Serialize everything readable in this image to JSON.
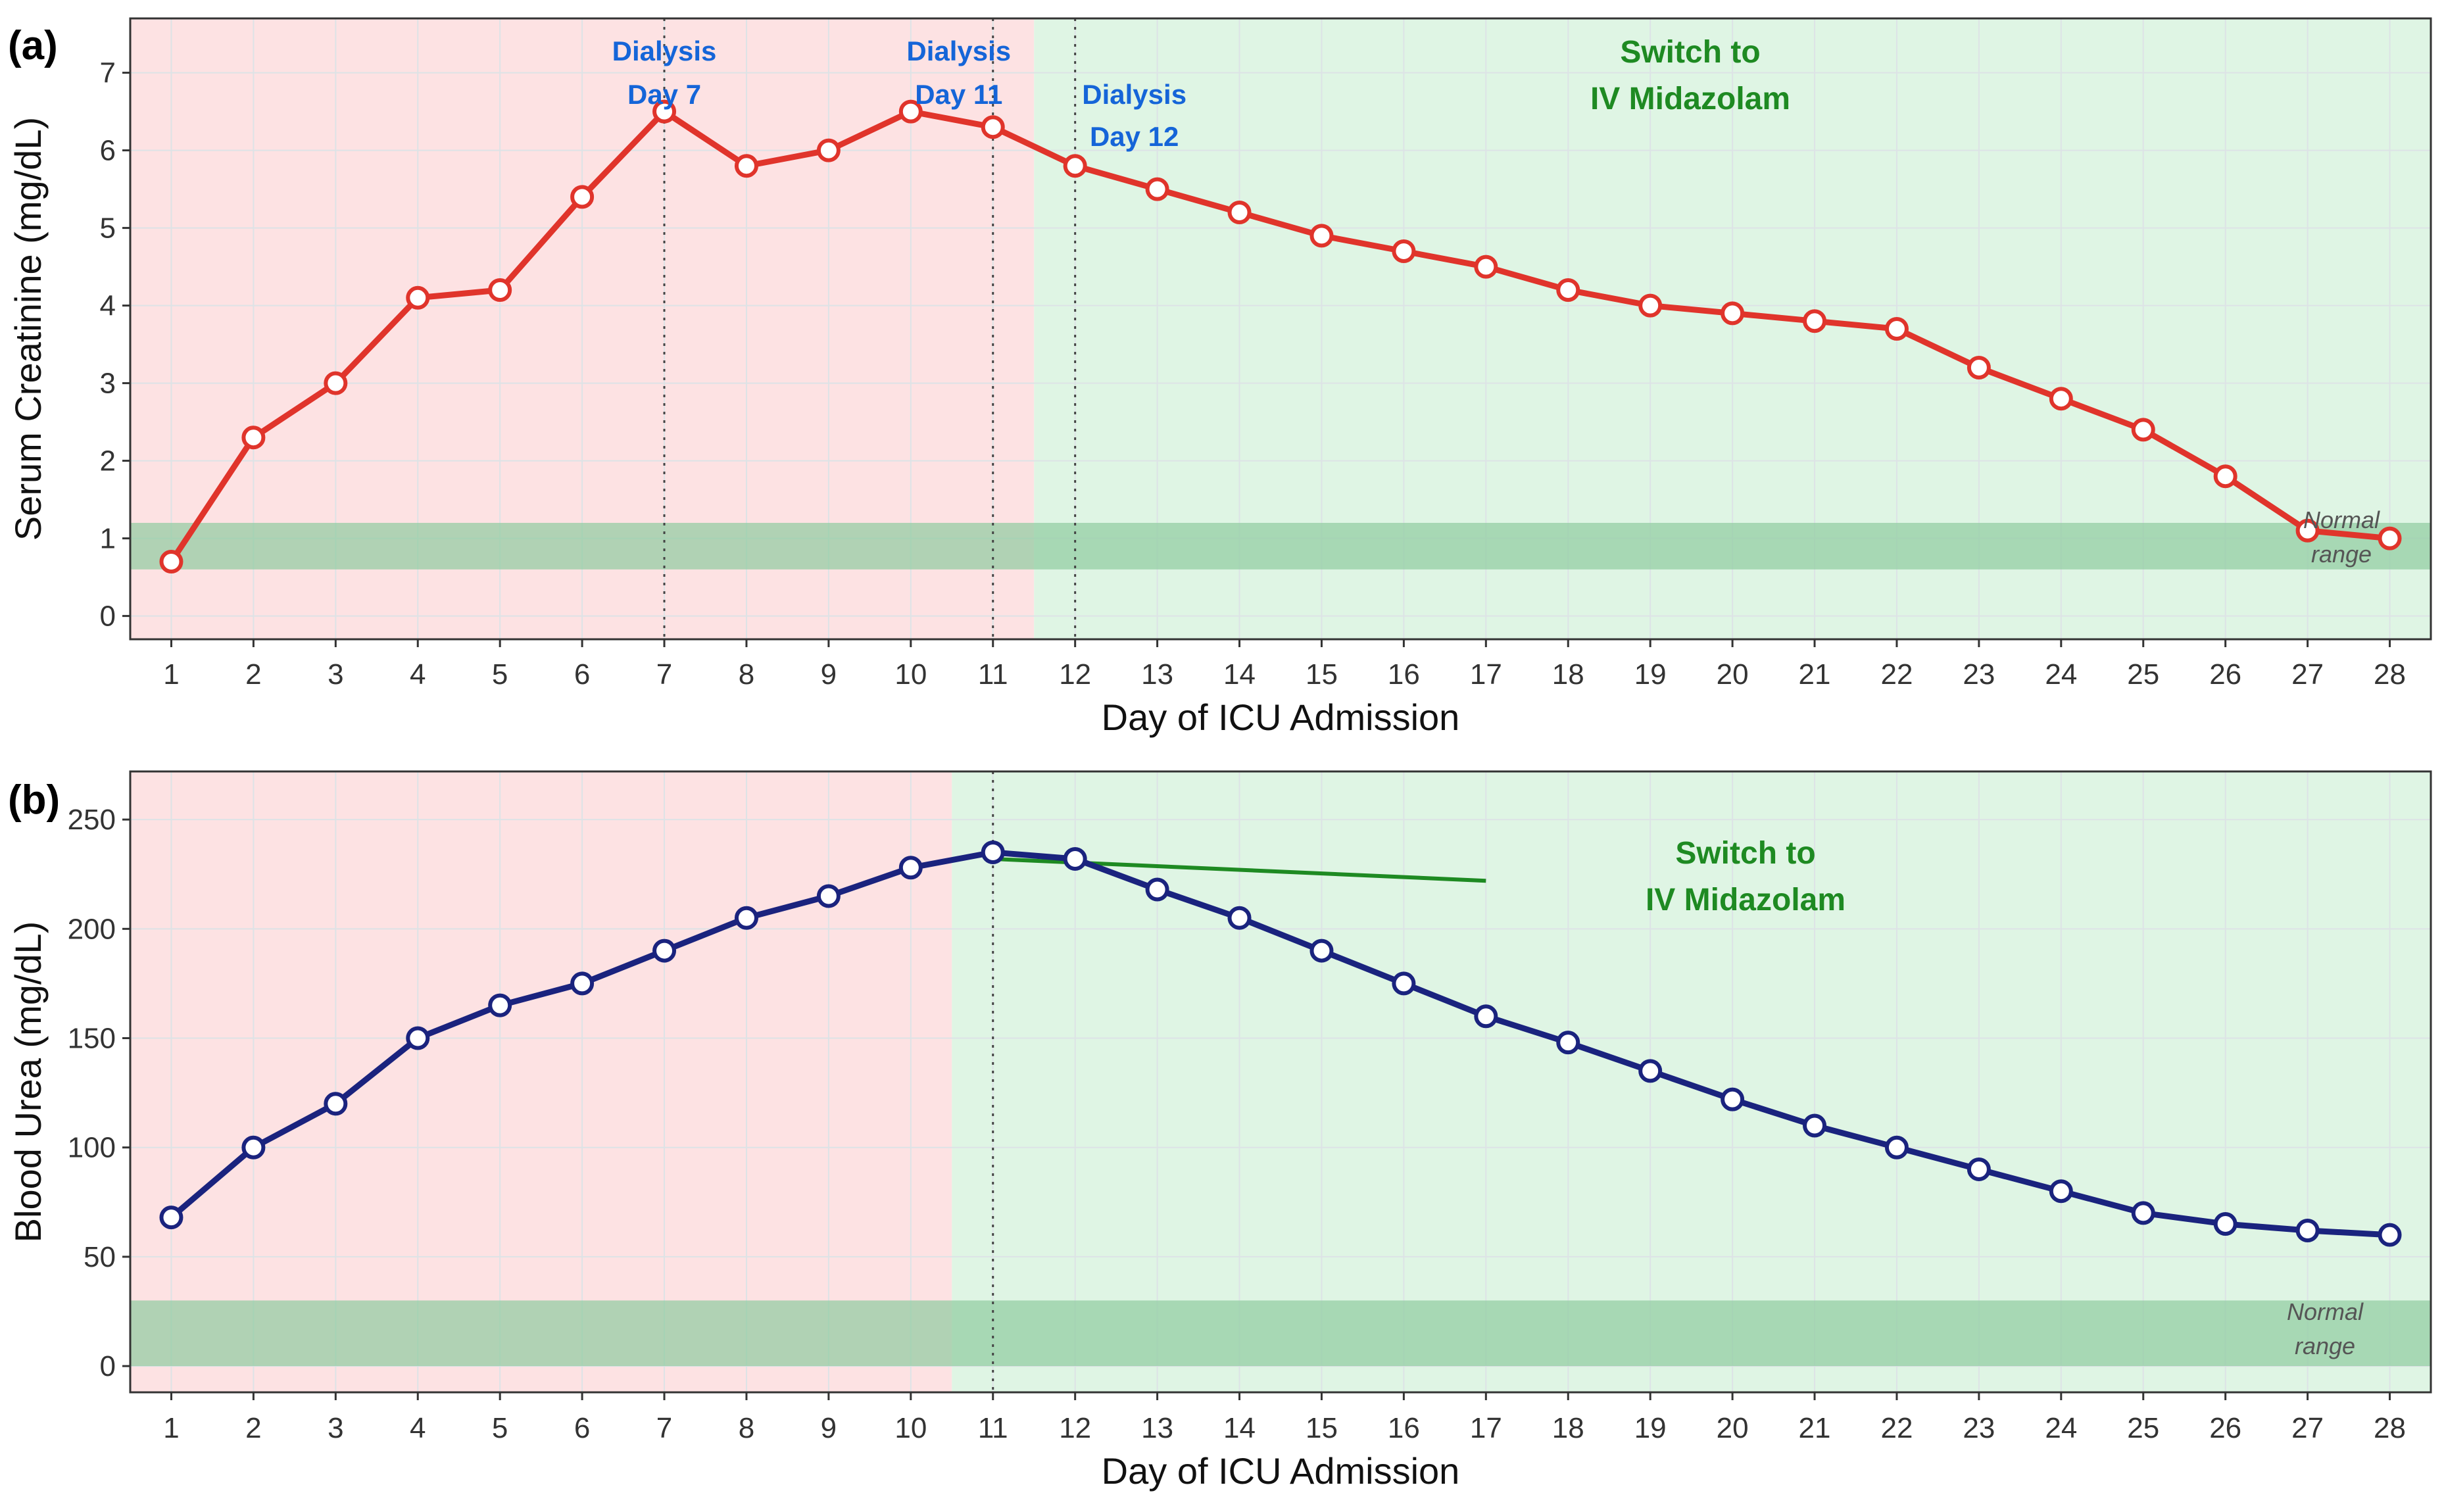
{
  "colors": {
    "pre_bg": "#fde2e3",
    "post_bg": "#dff5e4",
    "normal_band": "#8fcc9f",
    "grid": "#dde3e6",
    "creatinine_line": "#e0342b",
    "urea_line": "#1a237e",
    "dialysis_text": "#1565d8",
    "switch_text": "#1e8a22",
    "trend_line": "#1e8a22"
  },
  "chart_data": [
    {
      "type": "line",
      "panel_label": "(a)",
      "xlabel": "Day of ICU Admission",
      "ylabel": "Serum Creatinine (mg/dL)",
      "x": [
        1,
        2,
        3,
        4,
        5,
        6,
        7,
        8,
        9,
        10,
        11,
        12,
        13,
        14,
        15,
        16,
        17,
        18,
        19,
        20,
        21,
        22,
        23,
        24,
        25,
        26,
        27,
        28
      ],
      "values": [
        0.7,
        2.3,
        3.0,
        4.1,
        4.2,
        5.4,
        6.5,
        5.8,
        6.0,
        6.5,
        6.3,
        5.8,
        5.5,
        5.2,
        4.9,
        4.7,
        4.5,
        4.2,
        4.0,
        3.9,
        3.8,
        3.7,
        3.2,
        2.8,
        2.4,
        1.8,
        1.1,
        1.0
      ],
      "ylim": [
        -0.3,
        7.7
      ],
      "xlim": [
        0.5,
        28.5
      ],
      "yticks": [
        0,
        1,
        2,
        3,
        4,
        5,
        6,
        7
      ],
      "pre_switch_until": 11.5,
      "normal_range": [
        0.6,
        1.2
      ],
      "normal_label": [
        "Normal",
        "range"
      ],
      "dialysis_days": [
        7,
        11,
        12
      ],
      "dialysis_labels": [
        {
          "line1": "Dialysis",
          "line2": "Day 7",
          "day": 7
        },
        {
          "line1": "Dialysis",
          "line2": "Day 11",
          "day": 11
        },
        {
          "line1": "Dialysis",
          "line2": "Day 12",
          "day": 12
        }
      ],
      "switch_label": [
        "Switch to",
        "IV Midazolam"
      ],
      "grid": true
    },
    {
      "type": "line",
      "panel_label": "(b)",
      "xlabel": "Day of ICU Admission",
      "ylabel": "Blood Urea (mg/dL)",
      "x": [
        1,
        2,
        3,
        4,
        5,
        6,
        7,
        8,
        9,
        10,
        11,
        12,
        13,
        14,
        15,
        16,
        17,
        18,
        19,
        20,
        21,
        22,
        23,
        24,
        25,
        26,
        27,
        28
      ],
      "values": [
        68,
        100,
        120,
        150,
        165,
        175,
        190,
        205,
        215,
        228,
        235,
        232,
        218,
        205,
        190,
        175,
        160,
        148,
        135,
        122,
        110,
        100,
        90,
        80,
        70,
        65,
        62,
        60
      ],
      "ylim": [
        -12,
        272
      ],
      "xlim": [
        0.5,
        28.5
      ],
      "yticks": [
        0,
        50,
        100,
        150,
        200,
        250
      ],
      "pre_switch_until": 10.5,
      "normal_range": [
        0,
        30
      ],
      "normal_label": [
        "Normal",
        "range"
      ],
      "dialysis_days": [
        11
      ],
      "trend_line": {
        "x": [
          11,
          17
        ],
        "y": [
          232,
          222
        ]
      },
      "switch_label": [
        "Switch to",
        "IV Midazolam"
      ],
      "grid": true
    }
  ]
}
